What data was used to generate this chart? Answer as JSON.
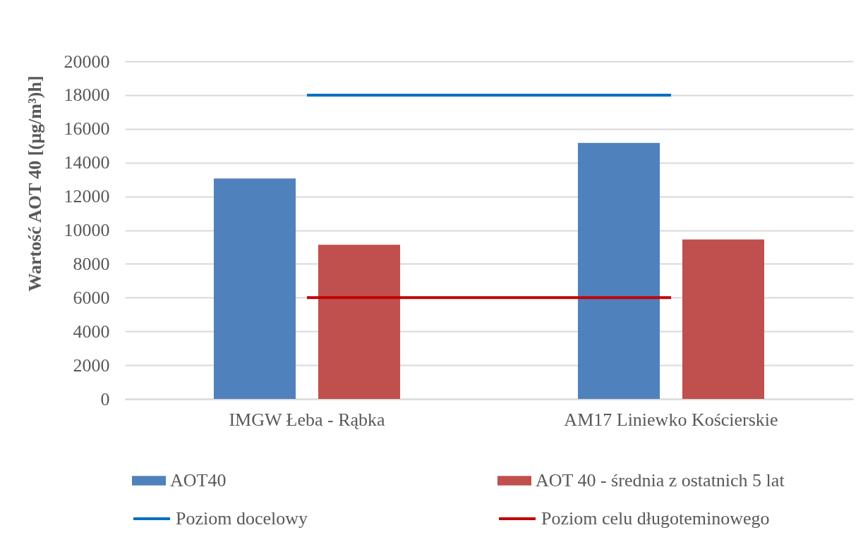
{
  "chart_data": {
    "type": "bar",
    "ylabel": "Wartość AOT 40 [(µg/m³)h]",
    "categories": [
      "IMGW Łeba - Rąbka",
      "AM17 Liniewko Kościerskie"
    ],
    "series": [
      {
        "name": "AOT40",
        "color": "#4f81bd",
        "values": [
          13060,
          15170
        ]
      },
      {
        "name": "AOT 40 - średnia z ostatnich 5 lat",
        "color": "#c0504d",
        "values": [
          9130,
          9450
        ]
      },
      {
        "name": "Poziom docelowy",
        "type": "line",
        "color": "#0070c0",
        "values": [
          18000,
          18000
        ]
      },
      {
        "name": "Poziom celu długoteminowego",
        "type": "line",
        "color": "#c00000",
        "values": [
          6000,
          6000
        ]
      }
    ],
    "ylim": [
      0,
      20000
    ],
    "yticks": [
      0,
      2000,
      4000,
      6000,
      8000,
      10000,
      12000,
      14000,
      16000,
      18000,
      20000
    ],
    "grid": "y",
    "legend": "bottom"
  }
}
